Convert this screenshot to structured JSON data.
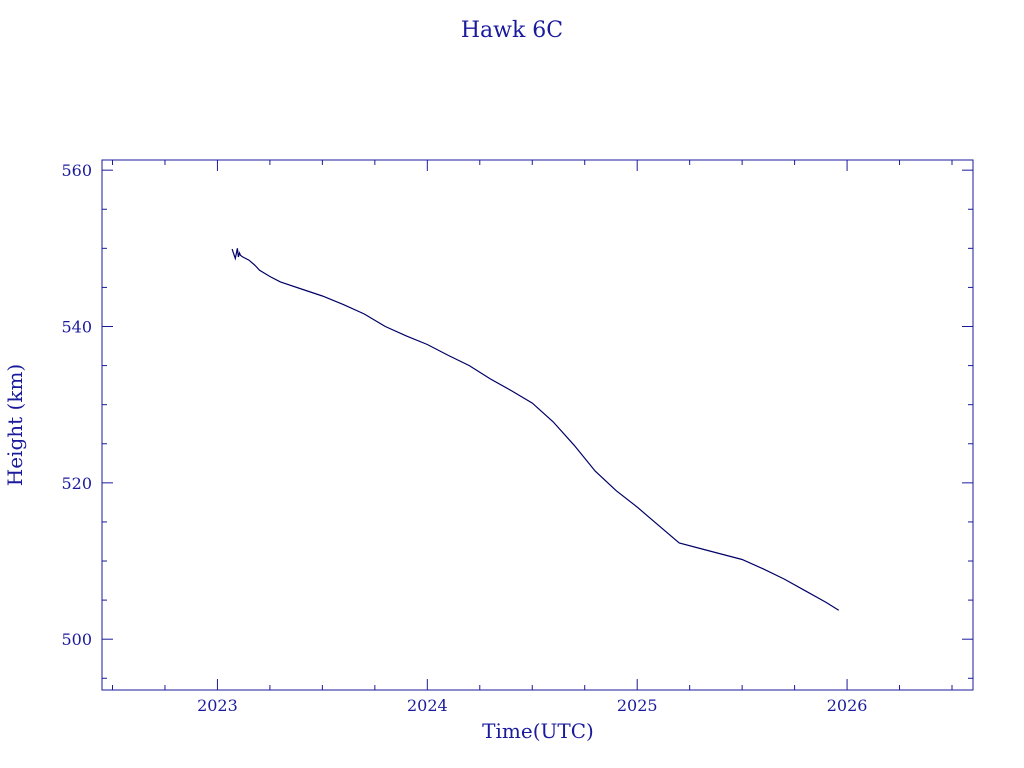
{
  "chart_data": {
    "type": "line",
    "title": "Hawk 6C",
    "xlabel": "Time(UTC)",
    "ylabel": "Height (km)",
    "xlim": [
      2022.45,
      2026.6
    ],
    "ylim": [
      493.5,
      561.3
    ],
    "x_ticks": [
      2023,
      2024,
      2025,
      2026
    ],
    "x_tick_labels": [
      "2023",
      "2024",
      "2025",
      "2026"
    ],
    "y_ticks": [
      500,
      520,
      540,
      560
    ],
    "y_tick_labels": [
      "500",
      "520",
      "540",
      "560"
    ],
    "grid": false,
    "colors": {
      "axis": "#1a1a9c",
      "line": "#000066"
    },
    "series": [
      {
        "x": [
          2023.07,
          2023.085,
          2023.095,
          2023.1,
          2023.105,
          2023.11,
          2023.12,
          2023.15,
          2023.18,
          2023.2,
          2023.25,
          2023.3,
          2023.4,
          2023.5,
          2023.6,
          2023.7,
          2023.8,
          2023.9,
          2024.0,
          2024.1,
          2024.2,
          2024.3,
          2024.4,
          2024.5,
          2024.6,
          2024.7,
          2024.8,
          2024.9,
          2025.0,
          2025.1,
          2025.2,
          2025.3,
          2025.4,
          2025.5,
          2025.6,
          2025.7,
          2025.8,
          2025.9,
          2025.96
        ],
        "y": [
          549.9,
          548.7,
          550.0,
          548.9,
          549.4,
          549.1,
          548.9,
          548.5,
          547.8,
          547.2,
          546.4,
          545.7,
          544.8,
          543.9,
          542.8,
          541.6,
          540.0,
          538.8,
          537.7,
          536.3,
          535.0,
          533.3,
          531.8,
          530.2,
          527.8,
          524.8,
          521.5,
          519.0,
          516.9,
          514.6,
          512.3,
          511.6,
          510.9,
          510.2,
          509.0,
          507.7,
          506.2,
          504.7,
          503.7
        ]
      }
    ]
  }
}
